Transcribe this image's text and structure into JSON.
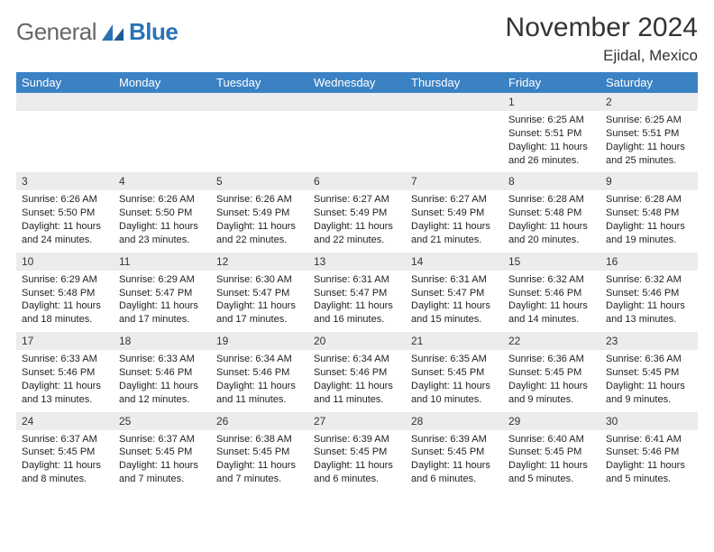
{
  "brand": {
    "general": "General",
    "blue": "Blue"
  },
  "header": {
    "month_title": "November 2024",
    "location": "Ejidal, Mexico"
  },
  "colors": {
    "header_bg": "#3b82c4",
    "header_text": "#ffffff",
    "daynum_bg": "#ececec",
    "daynum_border": "#c9c9c9",
    "body_text": "#222222",
    "logo_gray": "#666666",
    "logo_blue": "#2a72b5",
    "page_bg": "#ffffff"
  },
  "day_headers": [
    "Sunday",
    "Monday",
    "Tuesday",
    "Wednesday",
    "Thursday",
    "Friday",
    "Saturday"
  ],
  "weeks": [
    {
      "nums": [
        "",
        "",
        "",
        "",
        "",
        "1",
        "2"
      ],
      "cells": [
        null,
        null,
        null,
        null,
        null,
        {
          "sunrise": "Sunrise: 6:25 AM",
          "sunset": "Sunset: 5:51 PM",
          "day1": "Daylight: 11 hours",
          "day2": "and 26 minutes."
        },
        {
          "sunrise": "Sunrise: 6:25 AM",
          "sunset": "Sunset: 5:51 PM",
          "day1": "Daylight: 11 hours",
          "day2": "and 25 minutes."
        }
      ]
    },
    {
      "nums": [
        "3",
        "4",
        "5",
        "6",
        "7",
        "8",
        "9"
      ],
      "cells": [
        {
          "sunrise": "Sunrise: 6:26 AM",
          "sunset": "Sunset: 5:50 PM",
          "day1": "Daylight: 11 hours",
          "day2": "and 24 minutes."
        },
        {
          "sunrise": "Sunrise: 6:26 AM",
          "sunset": "Sunset: 5:50 PM",
          "day1": "Daylight: 11 hours",
          "day2": "and 23 minutes."
        },
        {
          "sunrise": "Sunrise: 6:26 AM",
          "sunset": "Sunset: 5:49 PM",
          "day1": "Daylight: 11 hours",
          "day2": "and 22 minutes."
        },
        {
          "sunrise": "Sunrise: 6:27 AM",
          "sunset": "Sunset: 5:49 PM",
          "day1": "Daylight: 11 hours",
          "day2": "and 22 minutes."
        },
        {
          "sunrise": "Sunrise: 6:27 AM",
          "sunset": "Sunset: 5:49 PM",
          "day1": "Daylight: 11 hours",
          "day2": "and 21 minutes."
        },
        {
          "sunrise": "Sunrise: 6:28 AM",
          "sunset": "Sunset: 5:48 PM",
          "day1": "Daylight: 11 hours",
          "day2": "and 20 minutes."
        },
        {
          "sunrise": "Sunrise: 6:28 AM",
          "sunset": "Sunset: 5:48 PM",
          "day1": "Daylight: 11 hours",
          "day2": "and 19 minutes."
        }
      ]
    },
    {
      "nums": [
        "10",
        "11",
        "12",
        "13",
        "14",
        "15",
        "16"
      ],
      "cells": [
        {
          "sunrise": "Sunrise: 6:29 AM",
          "sunset": "Sunset: 5:48 PM",
          "day1": "Daylight: 11 hours",
          "day2": "and 18 minutes."
        },
        {
          "sunrise": "Sunrise: 6:29 AM",
          "sunset": "Sunset: 5:47 PM",
          "day1": "Daylight: 11 hours",
          "day2": "and 17 minutes."
        },
        {
          "sunrise": "Sunrise: 6:30 AM",
          "sunset": "Sunset: 5:47 PM",
          "day1": "Daylight: 11 hours",
          "day2": "and 17 minutes."
        },
        {
          "sunrise": "Sunrise: 6:31 AM",
          "sunset": "Sunset: 5:47 PM",
          "day1": "Daylight: 11 hours",
          "day2": "and 16 minutes."
        },
        {
          "sunrise": "Sunrise: 6:31 AM",
          "sunset": "Sunset: 5:47 PM",
          "day1": "Daylight: 11 hours",
          "day2": "and 15 minutes."
        },
        {
          "sunrise": "Sunrise: 6:32 AM",
          "sunset": "Sunset: 5:46 PM",
          "day1": "Daylight: 11 hours",
          "day2": "and 14 minutes."
        },
        {
          "sunrise": "Sunrise: 6:32 AM",
          "sunset": "Sunset: 5:46 PM",
          "day1": "Daylight: 11 hours",
          "day2": "and 13 minutes."
        }
      ]
    },
    {
      "nums": [
        "17",
        "18",
        "19",
        "20",
        "21",
        "22",
        "23"
      ],
      "cells": [
        {
          "sunrise": "Sunrise: 6:33 AM",
          "sunset": "Sunset: 5:46 PM",
          "day1": "Daylight: 11 hours",
          "day2": "and 13 minutes."
        },
        {
          "sunrise": "Sunrise: 6:33 AM",
          "sunset": "Sunset: 5:46 PM",
          "day1": "Daylight: 11 hours",
          "day2": "and 12 minutes."
        },
        {
          "sunrise": "Sunrise: 6:34 AM",
          "sunset": "Sunset: 5:46 PM",
          "day1": "Daylight: 11 hours",
          "day2": "and 11 minutes."
        },
        {
          "sunrise": "Sunrise: 6:34 AM",
          "sunset": "Sunset: 5:46 PM",
          "day1": "Daylight: 11 hours",
          "day2": "and 11 minutes."
        },
        {
          "sunrise": "Sunrise: 6:35 AM",
          "sunset": "Sunset: 5:45 PM",
          "day1": "Daylight: 11 hours",
          "day2": "and 10 minutes."
        },
        {
          "sunrise": "Sunrise: 6:36 AM",
          "sunset": "Sunset: 5:45 PM",
          "day1": "Daylight: 11 hours",
          "day2": "and 9 minutes."
        },
        {
          "sunrise": "Sunrise: 6:36 AM",
          "sunset": "Sunset: 5:45 PM",
          "day1": "Daylight: 11 hours",
          "day2": "and 9 minutes."
        }
      ]
    },
    {
      "nums": [
        "24",
        "25",
        "26",
        "27",
        "28",
        "29",
        "30"
      ],
      "cells": [
        {
          "sunrise": "Sunrise: 6:37 AM",
          "sunset": "Sunset: 5:45 PM",
          "day1": "Daylight: 11 hours",
          "day2": "and 8 minutes."
        },
        {
          "sunrise": "Sunrise: 6:37 AM",
          "sunset": "Sunset: 5:45 PM",
          "day1": "Daylight: 11 hours",
          "day2": "and 7 minutes."
        },
        {
          "sunrise": "Sunrise: 6:38 AM",
          "sunset": "Sunset: 5:45 PM",
          "day1": "Daylight: 11 hours",
          "day2": "and 7 minutes."
        },
        {
          "sunrise": "Sunrise: 6:39 AM",
          "sunset": "Sunset: 5:45 PM",
          "day1": "Daylight: 11 hours",
          "day2": "and 6 minutes."
        },
        {
          "sunrise": "Sunrise: 6:39 AM",
          "sunset": "Sunset: 5:45 PM",
          "day1": "Daylight: 11 hours",
          "day2": "and 6 minutes."
        },
        {
          "sunrise": "Sunrise: 6:40 AM",
          "sunset": "Sunset: 5:45 PM",
          "day1": "Daylight: 11 hours",
          "day2": "and 5 minutes."
        },
        {
          "sunrise": "Sunrise: 6:41 AM",
          "sunset": "Sunset: 5:46 PM",
          "day1": "Daylight: 11 hours",
          "day2": "and 5 minutes."
        }
      ]
    }
  ]
}
